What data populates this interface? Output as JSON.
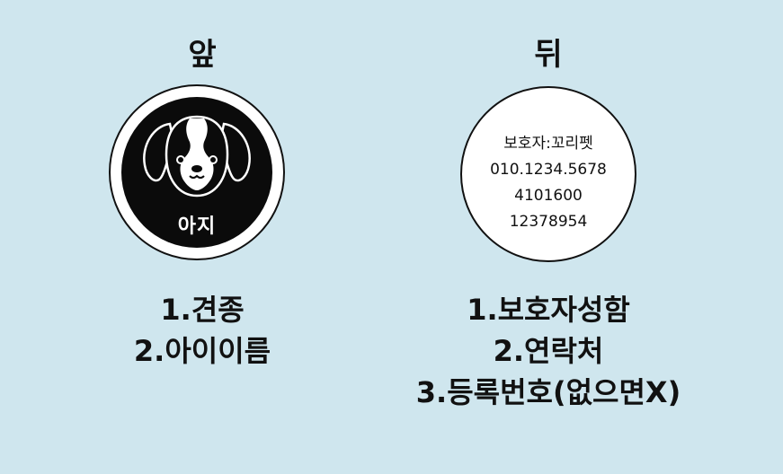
{
  "front": {
    "title": "앞",
    "pet_name": "아지",
    "list": [
      "1.견종",
      "2.아이이름"
    ]
  },
  "back": {
    "title": "뒤",
    "tag_lines": [
      "보호자:꼬리펫",
      "010.1234.5678",
      "4101600",
      "12378954"
    ],
    "list": [
      "1.보호자성함",
      "2.연락처",
      "3.등록번호(없으면X)"
    ]
  },
  "colors": {
    "background": "#cfe6ee",
    "tag_black": "#0b0b0b",
    "text": "#111111"
  }
}
